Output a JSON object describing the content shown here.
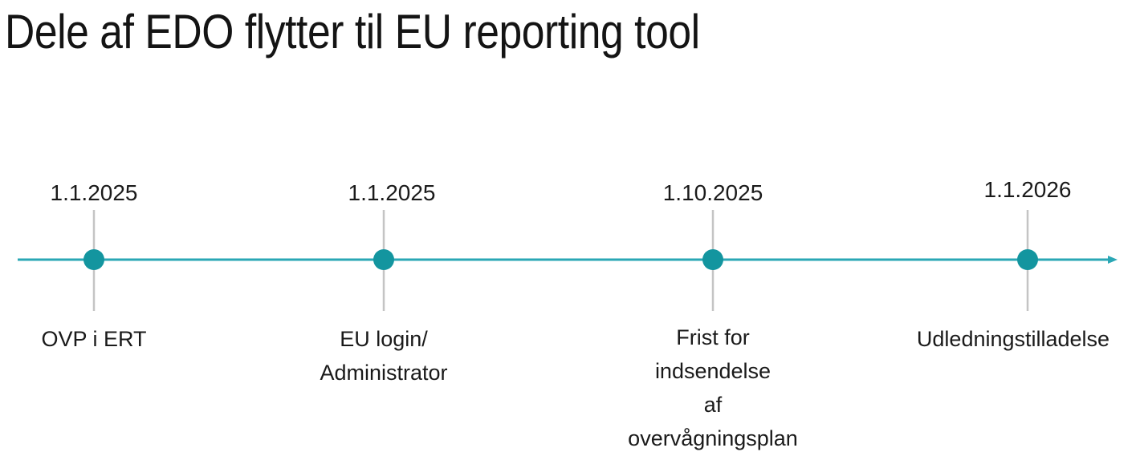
{
  "title": "Dele af EDO flytter til EU reporting tool",
  "colors": {
    "timeline": "#2aa7b5",
    "milestone_dot": "#13959f",
    "tick": "#c4c4c4",
    "text": "#1a1a1a"
  },
  "milestones": [
    {
      "date": "1.1.2025",
      "label": "OVP i ERT"
    },
    {
      "date": "1.1.2025",
      "label": "EU login/\nAdministrator"
    },
    {
      "date": "1.10.2025",
      "label": "Frist for\nindsendelse\naf\novervågningsplan"
    },
    {
      "date": "1.1.2026",
      "label": "Udledningstilladelse"
    }
  ]
}
